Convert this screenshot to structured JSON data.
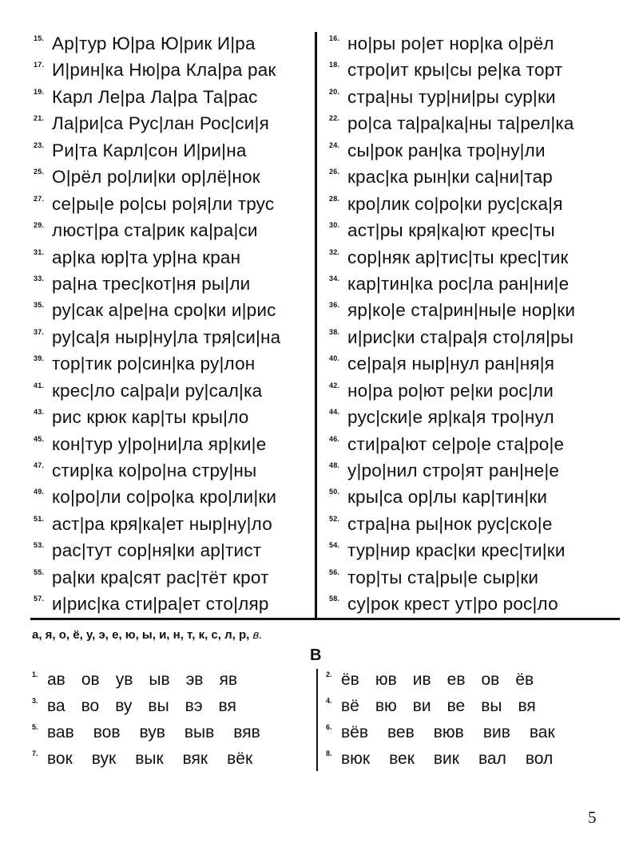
{
  "exercises_left": [
    {
      "n": "15.",
      "text": "Ар|тур Ю|ра Ю|рик И|ра"
    },
    {
      "n": "17.",
      "text": "И|рин|ка Ню|ра Кла|ра рак"
    },
    {
      "n": "19.",
      "text": "Карл Ле|ра Ла|ра Та|рас"
    },
    {
      "n": "21.",
      "text": "Ла|ри|са Рус|лан Рос|си|я"
    },
    {
      "n": "23.",
      "text": "Ри|та Карл|сон И|ри|на"
    },
    {
      "n": "25.",
      "text": "О|рёл ро|ли|ки ор|лё|нок"
    },
    {
      "n": "27.",
      "text": "се|ры|е ро|сы ро|я|ли трус"
    },
    {
      "n": "29.",
      "text": "люст|ра ста|рик ка|ра|си"
    },
    {
      "n": "31.",
      "text": "ар|ка юр|та ур|на кран"
    },
    {
      "n": "33.",
      "text": "ра|на трес|кот|ня ры|ли"
    },
    {
      "n": "35.",
      "text": "ру|сак а|ре|на сро|ки и|рис"
    },
    {
      "n": "37.",
      "text": "ру|са|я ныр|ну|ла тря|си|на"
    },
    {
      "n": "39.",
      "text": "тор|тик ро|син|ка ру|лон"
    },
    {
      "n": "41.",
      "text": "крес|ло са|ра|и ру|сал|ка"
    },
    {
      "n": "43.",
      "text": "рис крюк кар|ты кры|ло"
    },
    {
      "n": "45.",
      "text": "кон|тур у|ро|ни|ла яр|ки|е"
    },
    {
      "n": "47.",
      "text": "стир|ка ко|ро|на стру|ны"
    },
    {
      "n": "49.",
      "text": "ко|ро|ли со|ро|ка кро|ли|ки"
    },
    {
      "n": "51.",
      "text": "аст|ра кря|ка|ет ныр|ну|ло"
    },
    {
      "n": "53.",
      "text": "рас|тут сор|ня|ки ар|тист"
    },
    {
      "n": "55.",
      "text": "ра|ки кра|сят рас|тёт крот"
    },
    {
      "n": "57.",
      "text": "и|рис|ка сти|ра|ет сто|ляр"
    }
  ],
  "exercises_right": [
    {
      "n": "16.",
      "text": "но|ры ро|ет нор|ка о|рёл"
    },
    {
      "n": "18.",
      "text": "стро|ит кры|сы ре|ка торт"
    },
    {
      "n": "20.",
      "text": "стра|ны тур|ни|ры сур|ки"
    },
    {
      "n": "22.",
      "text": "ро|са та|ра|ка|ны та|рел|ка"
    },
    {
      "n": "24.",
      "text": "сы|рок ран|ка тро|ну|ли"
    },
    {
      "n": "26.",
      "text": "крас|ка рын|ки са|ни|тар"
    },
    {
      "n": "28.",
      "text": "кро|лик со|ро|ки рус|ска|я"
    },
    {
      "n": "30.",
      "text": "аст|ры кря|ка|ют крес|ты"
    },
    {
      "n": "32.",
      "text": "сор|няк ар|тис|ты крес|тик"
    },
    {
      "n": "34.",
      "text": "кар|тин|ка рос|ла ран|ни|е"
    },
    {
      "n": "36.",
      "text": "яр|ко|е ста|рин|ны|е нор|ки"
    },
    {
      "n": "38.",
      "text": "и|рис|ки ста|ра|я сто|ля|ры"
    },
    {
      "n": "40.",
      "text": "се|ра|я ныр|нул ран|ня|я"
    },
    {
      "n": "42.",
      "text": "но|ра ро|ют ре|ки рос|ли"
    },
    {
      "n": "44.",
      "text": "рус|ски|е яр|ка|я тро|нул"
    },
    {
      "n": "46.",
      "text": "сти|ра|ют се|ро|е ста|ро|е"
    },
    {
      "n": "48.",
      "text": "у|ро|нил стро|ят ран|не|е"
    },
    {
      "n": "50.",
      "text": "кры|са ор|лы кар|тин|ки"
    },
    {
      "n": "52.",
      "text": "стра|на ры|нок рус|ско|е"
    },
    {
      "n": "54.",
      "text": "тур|нир крас|ки крес|ти|ки"
    },
    {
      "n": "56.",
      "text": "тор|ты ста|ры|е сыр|ки"
    },
    {
      "n": "58.",
      "text": "су|рок крест ут|ро рос|ло"
    }
  ],
  "letters_bold": "а, я, о, ё, у, э, е, ю, ы, и, н, т, к, с, л, р,",
  "letters_italic": " в.",
  "section_heading": "В",
  "v_rows": [
    {
      "n": "1.",
      "words": [
        "ав",
        "ов",
        "ув",
        "ыв",
        "эв",
        "яв"
      ]
    },
    {
      "n": "2.",
      "words": [
        "ёв",
        "юв",
        "ив",
        "ев",
        "ов",
        "ёв"
      ]
    },
    {
      "n": "3.",
      "words": [
        "ва",
        "во",
        "ву",
        "вы",
        "вэ",
        "вя"
      ]
    },
    {
      "n": "4.",
      "words": [
        "вё",
        "вю",
        "ви",
        "ве",
        "вы",
        "вя"
      ]
    },
    {
      "n": "5.",
      "words": [
        "вав",
        "вов",
        "вув",
        "выв",
        "вяв"
      ]
    },
    {
      "n": "6.",
      "words": [
        "вёв",
        "вев",
        "вюв",
        "вив",
        "вак"
      ]
    },
    {
      "n": "7.",
      "words": [
        "вок",
        "вук",
        "вык",
        "вяк",
        "вёк"
      ]
    },
    {
      "n": "8.",
      "words": [
        "вюк",
        "век",
        "вик",
        "вал",
        "вол"
      ]
    }
  ],
  "page_number": "5"
}
